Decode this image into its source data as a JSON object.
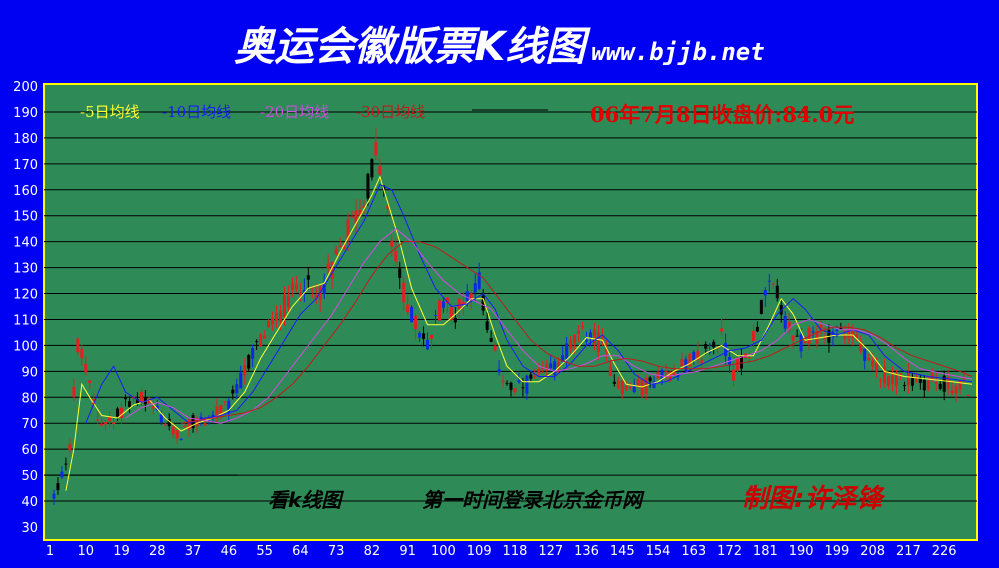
{
  "header": {
    "title": "奥运会徽版票K线图",
    "site": "www.bjjb.net"
  },
  "chart": {
    "legend": [
      {
        "label": "-5日均线",
        "color": "#ffff33"
      },
      {
        "label": "-10日均线",
        "color": "#1a1aff"
      },
      {
        "label": "-20日均线",
        "color": "#d24be0"
      },
      {
        "label": "-30日均线",
        "color": "#c21a1a"
      }
    ],
    "close_note": "06年7月8日收盘价:84.0元",
    "caption_left": "看k线图",
    "caption_mid": "第一时间登录北京金币网",
    "caption_right": "制图:许泽锋"
  },
  "chart_data": {
    "type": "candlestick",
    "x_ticks": [
      "1",
      "10",
      "19",
      "28",
      "37",
      "46",
      "55",
      "64",
      "73",
      "82",
      "91",
      "100",
      "109",
      "118",
      "127",
      "136",
      "145",
      "154",
      "163",
      "172",
      "181",
      "190",
      "199",
      "208",
      "217",
      "226"
    ],
    "y_ticks": [
      30,
      40,
      50,
      60,
      70,
      80,
      90,
      100,
      110,
      120,
      130,
      140,
      150,
      160,
      170,
      180,
      190,
      200
    ],
    "ylim": [
      30,
      200
    ],
    "xlim": [
      1,
      233
    ],
    "grid": "horizontal",
    "price_path": [
      [
        1,
        38
      ],
      [
        4,
        50
      ],
      [
        6,
        62
      ],
      [
        8,
        100
      ],
      [
        10,
        90
      ],
      [
        13,
        72
      ],
      [
        17,
        70
      ],
      [
        20,
        78
      ],
      [
        24,
        80
      ],
      [
        28,
        74
      ],
      [
        33,
        65
      ],
      [
        37,
        70
      ],
      [
        41,
        72
      ],
      [
        46,
        76
      ],
      [
        50,
        90
      ],
      [
        53,
        100
      ],
      [
        58,
        110
      ],
      [
        62,
        120
      ],
      [
        65,
        125
      ],
      [
        68,
        118
      ],
      [
        72,
        130
      ],
      [
        76,
        145
      ],
      [
        80,
        155
      ],
      [
        83,
        175
      ],
      [
        85,
        160
      ],
      [
        87,
        140
      ],
      [
        90,
        120
      ],
      [
        93,
        108
      ],
      [
        96,
        100
      ],
      [
        100,
        118
      ],
      [
        103,
        112
      ],
      [
        106,
        120
      ],
      [
        109,
        125
      ],
      [
        112,
        100
      ],
      [
        115,
        88
      ],
      [
        118,
        82
      ],
      [
        122,
        86
      ],
      [
        127,
        90
      ],
      [
        132,
        100
      ],
      [
        136,
        105
      ],
      [
        140,
        100
      ],
      [
        143,
        88
      ],
      [
        146,
        83
      ],
      [
        150,
        84
      ],
      [
        155,
        88
      ],
      [
        160,
        92
      ],
      [
        165,
        96
      ],
      [
        170,
        103
      ],
      [
        173,
        90
      ],
      [
        177,
        98
      ],
      [
        181,
        120
      ],
      [
        184,
        122
      ],
      [
        186,
        108
      ],
      [
        189,
        100
      ],
      [
        193,
        104
      ],
      [
        197,
        105
      ],
      [
        200,
        106
      ],
      [
        204,
        102
      ],
      [
        207,
        92
      ],
      [
        212,
        88
      ],
      [
        218,
        86
      ],
      [
        224,
        86
      ],
      [
        229,
        84
      ],
      [
        233,
        84
      ]
    ],
    "series": [
      {
        "name": "5日均线",
        "values": [
          [
            5,
            44
          ],
          [
            7,
            60
          ],
          [
            9,
            85
          ],
          [
            11,
            80
          ],
          [
            14,
            73
          ],
          [
            18,
            72
          ],
          [
            22,
            77
          ],
          [
            26,
            79
          ],
          [
            30,
            72
          ],
          [
            34,
            67
          ],
          [
            38,
            70
          ],
          [
            42,
            72
          ],
          [
            46,
            75
          ],
          [
            50,
            82
          ],
          [
            54,
            95
          ],
          [
            58,
            105
          ],
          [
            62,
            115
          ],
          [
            66,
            122
          ],
          [
            70,
            124
          ],
          [
            74,
            136
          ],
          [
            78,
            147
          ],
          [
            82,
            158
          ],
          [
            84,
            165
          ],
          [
            86,
            155
          ],
          [
            89,
            140
          ],
          [
            92,
            122
          ],
          [
            96,
            108
          ],
          [
            100,
            108
          ],
          [
            103,
            112
          ],
          [
            107,
            118
          ],
          [
            110,
            118
          ],
          [
            113,
            104
          ],
          [
            116,
            92
          ],
          [
            120,
            86
          ],
          [
            124,
            86
          ],
          [
            128,
            90
          ],
          [
            132,
            96
          ],
          [
            136,
            103
          ],
          [
            140,
            102
          ],
          [
            143,
            93
          ],
          [
            146,
            85
          ],
          [
            150,
            84
          ],
          [
            154,
            86
          ],
          [
            158,
            90
          ],
          [
            162,
            93
          ],
          [
            166,
            97
          ],
          [
            170,
            100
          ],
          [
            174,
            96
          ],
          [
            178,
            96
          ],
          [
            182,
            108
          ],
          [
            185,
            118
          ],
          [
            188,
            112
          ],
          [
            191,
            102
          ],
          [
            195,
            103
          ],
          [
            199,
            104
          ],
          [
            203,
            104
          ],
          [
            207,
            98
          ],
          [
            211,
            90
          ],
          [
            216,
            88
          ],
          [
            222,
            87
          ],
          [
            228,
            86
          ],
          [
            233,
            85
          ]
        ]
      },
      {
        "name": "10日均线",
        "values": [
          [
            10,
            70
          ],
          [
            14,
            85
          ],
          [
            17,
            92
          ],
          [
            20,
            82
          ],
          [
            24,
            78
          ],
          [
            28,
            80
          ],
          [
            32,
            75
          ],
          [
            36,
            70
          ],
          [
            40,
            72
          ],
          [
            44,
            73
          ],
          [
            48,
            75
          ],
          [
            52,
            82
          ],
          [
            56,
            92
          ],
          [
            60,
            102
          ],
          [
            64,
            112
          ],
          [
            68,
            118
          ],
          [
            72,
            128
          ],
          [
            76,
            138
          ],
          [
            80,
            148
          ],
          [
            84,
            162
          ],
          [
            87,
            160
          ],
          [
            90,
            150
          ],
          [
            94,
            135
          ],
          [
            98,
            122
          ],
          [
            102,
            115
          ],
          [
            106,
            116
          ],
          [
            110,
            120
          ],
          [
            113,
            114
          ],
          [
            116,
            102
          ],
          [
            120,
            92
          ],
          [
            124,
            88
          ],
          [
            128,
            88
          ],
          [
            132,
            93
          ],
          [
            136,
            100
          ],
          [
            140,
            104
          ],
          [
            144,
            98
          ],
          [
            148,
            89
          ],
          [
            152,
            85
          ],
          [
            156,
            86
          ],
          [
            160,
            89
          ],
          [
            164,
            92
          ],
          [
            168,
            95
          ],
          [
            172,
            98
          ],
          [
            176,
            99
          ],
          [
            180,
            102
          ],
          [
            184,
            112
          ],
          [
            188,
            118
          ],
          [
            191,
            114
          ],
          [
            195,
            106
          ],
          [
            199,
            104
          ],
          [
            203,
            106
          ],
          [
            207,
            104
          ],
          [
            211,
            96
          ],
          [
            216,
            90
          ],
          [
            222,
            88
          ],
          [
            228,
            87
          ],
          [
            233,
            86
          ]
        ]
      },
      {
        "name": "20日均线",
        "values": [
          [
            20,
            72
          ],
          [
            24,
            76
          ],
          [
            28,
            78
          ],
          [
            32,
            76
          ],
          [
            36,
            72
          ],
          [
            40,
            71
          ],
          [
            44,
            70
          ],
          [
            48,
            72
          ],
          [
            52,
            75
          ],
          [
            56,
            80
          ],
          [
            60,
            88
          ],
          [
            64,
            96
          ],
          [
            68,
            104
          ],
          [
            72,
            112
          ],
          [
            76,
            122
          ],
          [
            80,
            132
          ],
          [
            84,
            140
          ],
          [
            88,
            145
          ],
          [
            92,
            140
          ],
          [
            96,
            132
          ],
          [
            100,
            125
          ],
          [
            104,
            120
          ],
          [
            108,
            117
          ],
          [
            112,
            114
          ],
          [
            116,
            106
          ],
          [
            120,
            98
          ],
          [
            124,
            92
          ],
          [
            128,
            90
          ],
          [
            132,
            91
          ],
          [
            136,
            93
          ],
          [
            140,
            96
          ],
          [
            144,
            96
          ],
          [
            148,
            92
          ],
          [
            152,
            89
          ],
          [
            156,
            88
          ],
          [
            160,
            89
          ],
          [
            164,
            90
          ],
          [
            168,
            92
          ],
          [
            172,
            94
          ],
          [
            176,
            96
          ],
          [
            180,
            98
          ],
          [
            184,
            102
          ],
          [
            188,
            108
          ],
          [
            192,
            110
          ],
          [
            196,
            108
          ],
          [
            200,
            106
          ],
          [
            204,
            106
          ],
          [
            208,
            104
          ],
          [
            212,
            100
          ],
          [
            216,
            95
          ],
          [
            220,
            91
          ],
          [
            226,
            89
          ],
          [
            233,
            87
          ]
        ]
      },
      {
        "name": "30日均线",
        "values": [
          [
            34,
            70
          ],
          [
            38,
            71
          ],
          [
            42,
            72
          ],
          [
            46,
            73
          ],
          [
            50,
            74
          ],
          [
            54,
            76
          ],
          [
            58,
            80
          ],
          [
            62,
            85
          ],
          [
            66,
            92
          ],
          [
            70,
            100
          ],
          [
            74,
            108
          ],
          [
            78,
            117
          ],
          [
            82,
            127
          ],
          [
            86,
            135
          ],
          [
            90,
            140
          ],
          [
            94,
            140
          ],
          [
            98,
            138
          ],
          [
            102,
            134
          ],
          [
            106,
            130
          ],
          [
            110,
            126
          ],
          [
            114,
            118
          ],
          [
            118,
            110
          ],
          [
            122,
            102
          ],
          [
            126,
            97
          ],
          [
            130,
            94
          ],
          [
            134,
            92
          ],
          [
            138,
            92
          ],
          [
            142,
            94
          ],
          [
            146,
            95
          ],
          [
            150,
            94
          ],
          [
            154,
            92
          ],
          [
            158,
            91
          ],
          [
            162,
            91
          ],
          [
            166,
            91
          ],
          [
            170,
            92
          ],
          [
            174,
            93
          ],
          [
            178,
            94
          ],
          [
            182,
            96
          ],
          [
            186,
            99
          ],
          [
            190,
            102
          ],
          [
            194,
            105
          ],
          [
            198,
            107
          ],
          [
            202,
            107
          ],
          [
            206,
            106
          ],
          [
            210,
            103
          ],
          [
            214,
            99
          ],
          [
            218,
            96
          ],
          [
            224,
            93
          ],
          [
            230,
            90
          ],
          [
            233,
            88
          ]
        ]
      }
    ]
  }
}
